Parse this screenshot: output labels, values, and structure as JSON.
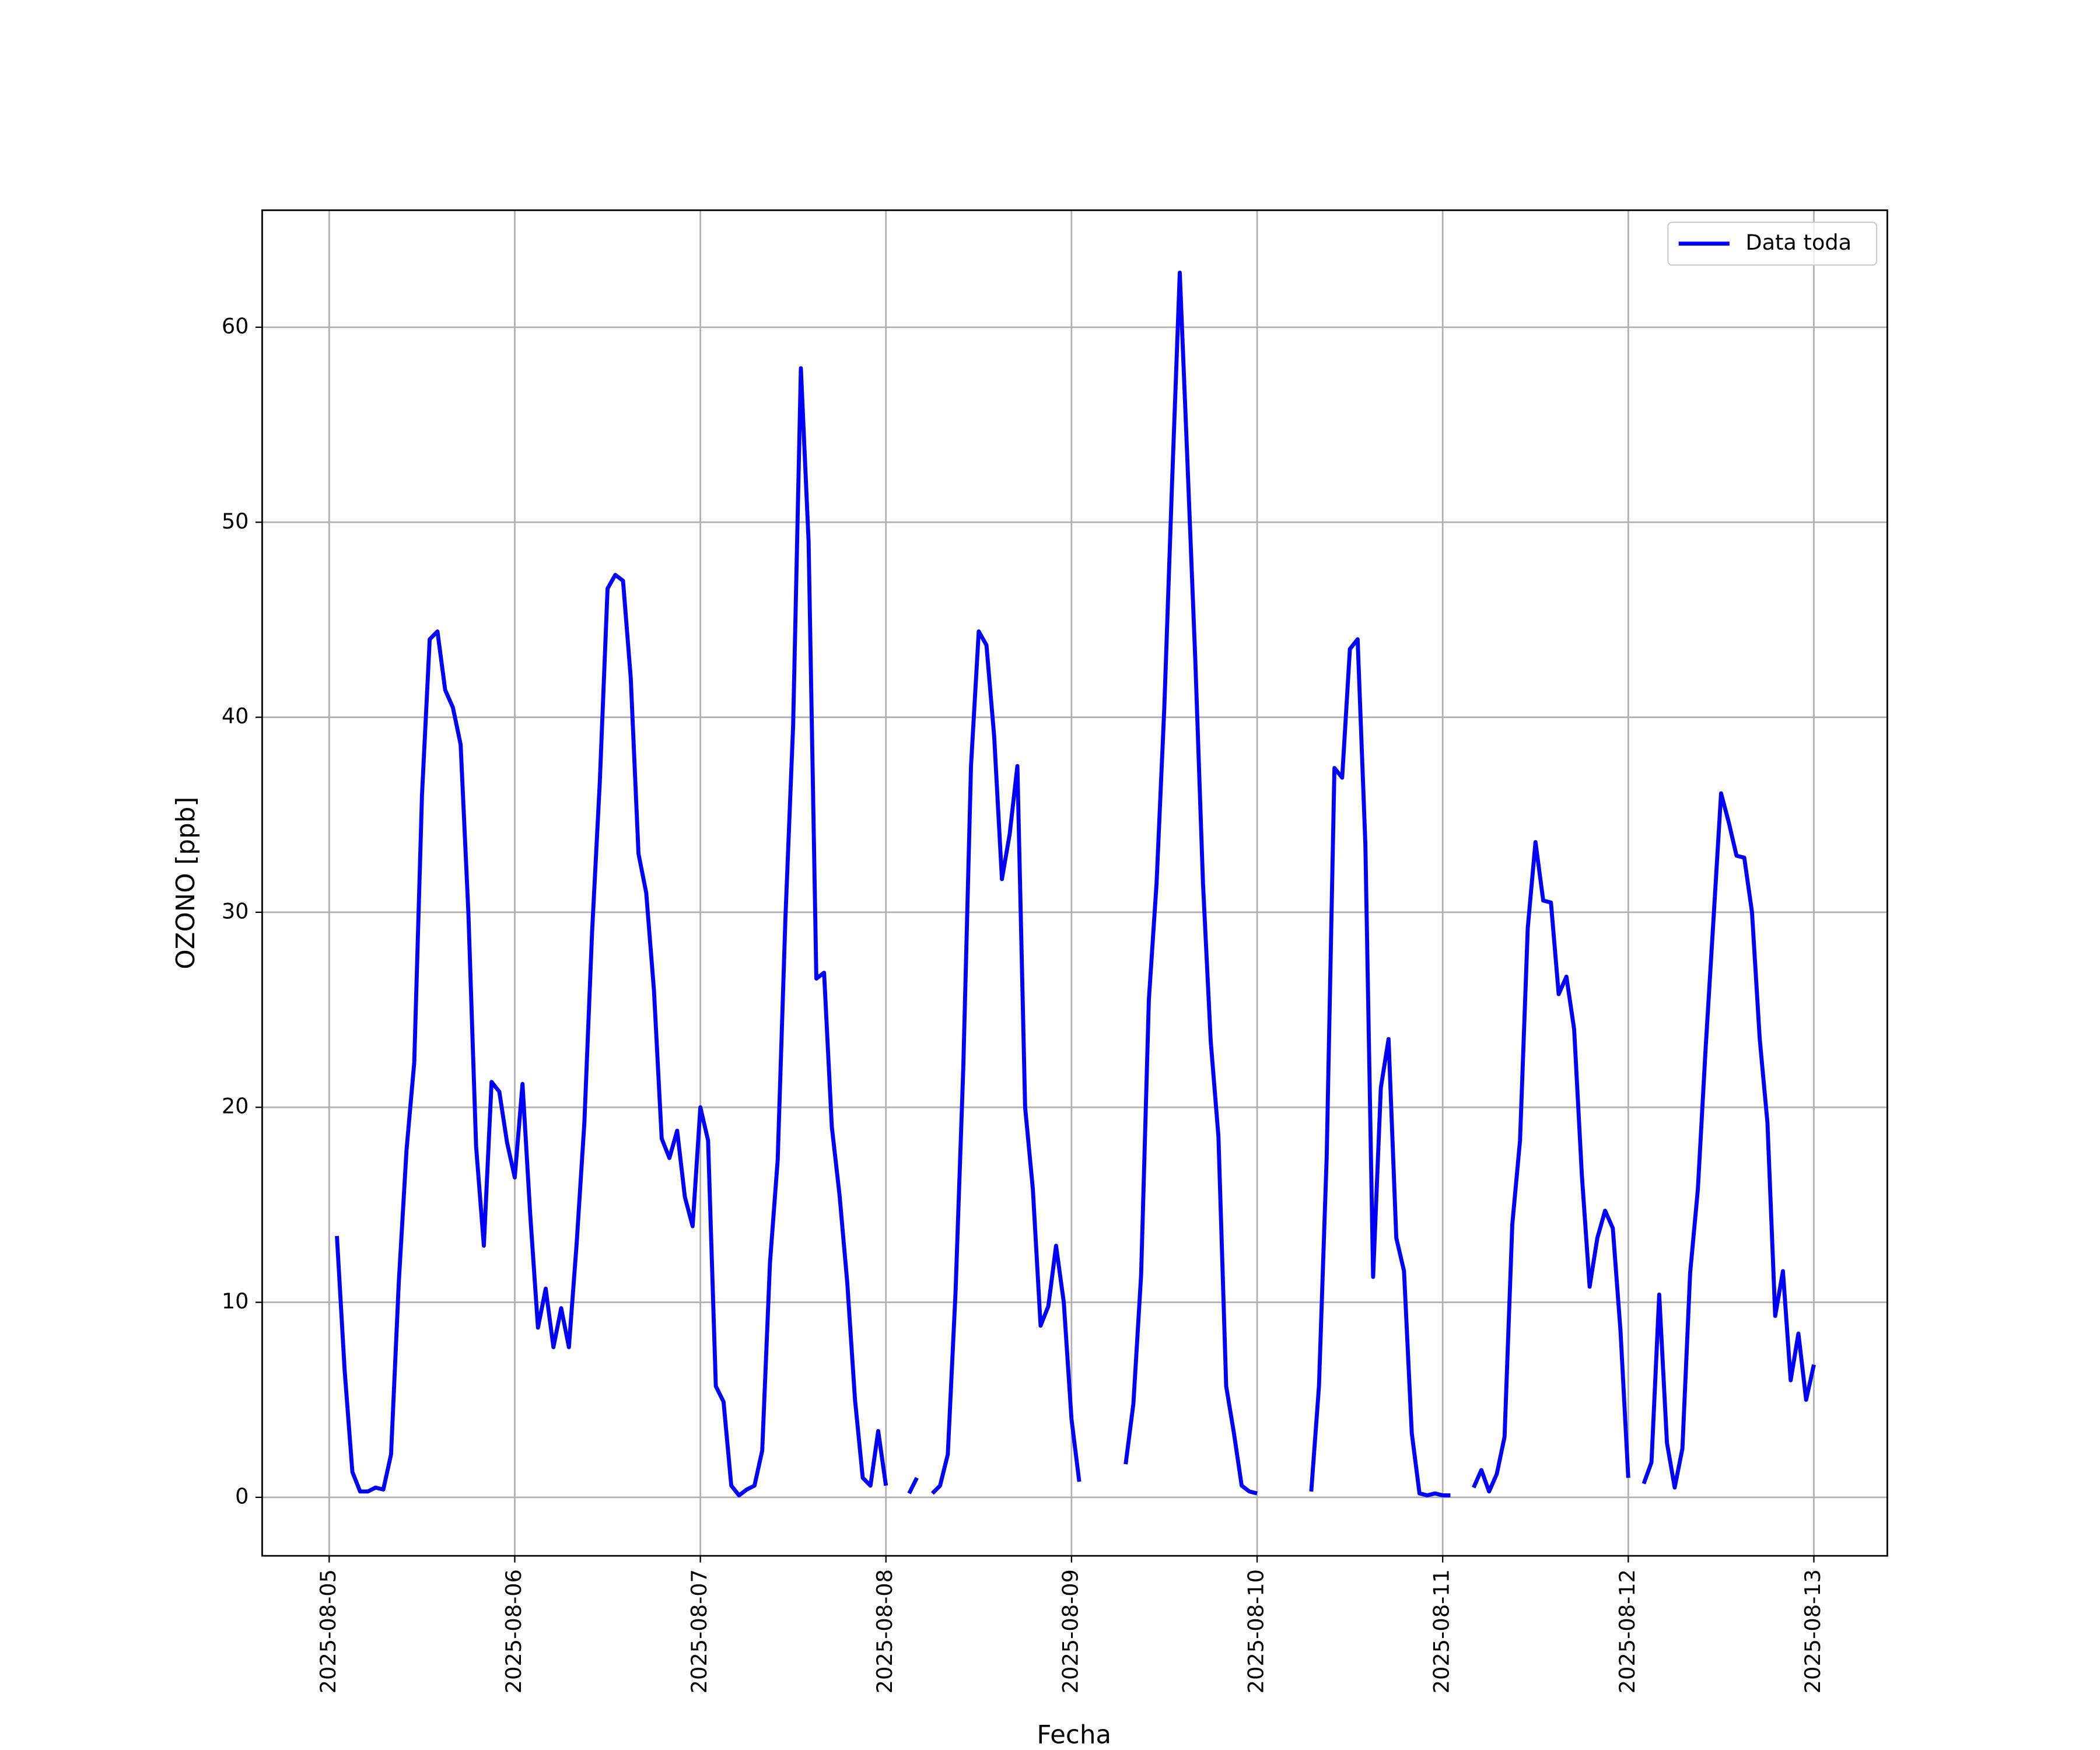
{
  "chart_data": {
    "type": "line",
    "xlabel": "Fecha",
    "ylabel": "OZONO [ppb]",
    "x": [
      "2025-08-05T01:00",
      "2025-08-05T02:00",
      "2025-08-05T03:00",
      "2025-08-05T04:00",
      "2025-08-05T05:00",
      "2025-08-05T06:00",
      "2025-08-05T07:00",
      "2025-08-05T08:00",
      "2025-08-05T09:00",
      "2025-08-05T10:00",
      "2025-08-05T11:00",
      "2025-08-05T12:00",
      "2025-08-05T13:00",
      "2025-08-05T14:00",
      "2025-08-05T15:00",
      "2025-08-05T16:00",
      "2025-08-05T17:00",
      "2025-08-05T18:00",
      "2025-08-05T19:00",
      "2025-08-05T20:00",
      "2025-08-05T21:00",
      "2025-08-05T22:00",
      "2025-08-05T23:00",
      "2025-08-06T00:00",
      "2025-08-06T01:00",
      "2025-08-06T02:00",
      "2025-08-06T03:00",
      "2025-08-06T04:00",
      "2025-08-06T05:00",
      "2025-08-06T06:00",
      "2025-08-06T07:00",
      "2025-08-06T08:00",
      "2025-08-06T09:00",
      "2025-08-06T10:00",
      "2025-08-06T11:00",
      "2025-08-06T12:00",
      "2025-08-06T13:00",
      "2025-08-06T14:00",
      "2025-08-06T15:00",
      "2025-08-06T16:00",
      "2025-08-06T17:00",
      "2025-08-06T18:00",
      "2025-08-06T19:00",
      "2025-08-06T20:00",
      "2025-08-06T21:00",
      "2025-08-06T22:00",
      "2025-08-06T23:00",
      "2025-08-07T00:00",
      "2025-08-07T01:00",
      "2025-08-07T02:00",
      "2025-08-07T03:00",
      "2025-08-07T04:00",
      "2025-08-07T05:00",
      "2025-08-07T06:00",
      "2025-08-07T07:00",
      "2025-08-07T08:00",
      "2025-08-07T09:00",
      "2025-08-07T10:00",
      "2025-08-07T11:00",
      "2025-08-07T12:00",
      "2025-08-07T13:00",
      "2025-08-07T14:00",
      "2025-08-07T15:00",
      "2025-08-07T16:00",
      "2025-08-07T17:00",
      "2025-08-07T18:00",
      "2025-08-07T19:00",
      "2025-08-07T20:00",
      "2025-08-07T21:00",
      "2025-08-07T22:00",
      "2025-08-07T23:00",
      "2025-08-08T00:00",
      "2025-08-08T01:00",
      "2025-08-08T02:00",
      "2025-08-08T03:00",
      "2025-08-08T04:00",
      "2025-08-08T05:00",
      "2025-08-08T06:00",
      "2025-08-08T07:00",
      "2025-08-08T08:00",
      "2025-08-08T09:00",
      "2025-08-08T10:00",
      "2025-08-08T11:00",
      "2025-08-08T12:00",
      "2025-08-08T13:00",
      "2025-08-08T14:00",
      "2025-08-08T15:00",
      "2025-08-08T16:00",
      "2025-08-08T17:00",
      "2025-08-08T18:00",
      "2025-08-08T19:00",
      "2025-08-08T20:00",
      "2025-08-08T21:00",
      "2025-08-08T22:00",
      "2025-08-08T23:00",
      "2025-08-09T00:00",
      "2025-08-09T01:00",
      "2025-08-09T02:00",
      "2025-08-09T03:00",
      "2025-08-09T04:00",
      "2025-08-09T05:00",
      "2025-08-09T06:00",
      "2025-08-09T07:00",
      "2025-08-09T08:00",
      "2025-08-09T09:00",
      "2025-08-09T10:00",
      "2025-08-09T11:00",
      "2025-08-09T12:00",
      "2025-08-09T13:00",
      "2025-08-09T14:00",
      "2025-08-09T15:00",
      "2025-08-09T16:00",
      "2025-08-09T17:00",
      "2025-08-09T18:00",
      "2025-08-09T19:00",
      "2025-08-09T20:00",
      "2025-08-09T21:00",
      "2025-08-09T22:00",
      "2025-08-09T23:00",
      "2025-08-10T00:00",
      "2025-08-10T01:00",
      "2025-08-10T02:00",
      "2025-08-10T03:00",
      "2025-08-10T04:00",
      "2025-08-10T05:00",
      "2025-08-10T06:00",
      "2025-08-10T07:00",
      "2025-08-10T08:00",
      "2025-08-10T09:00",
      "2025-08-10T10:00",
      "2025-08-10T11:00",
      "2025-08-10T12:00",
      "2025-08-10T13:00",
      "2025-08-10T14:00",
      "2025-08-10T15:00",
      "2025-08-10T16:00",
      "2025-08-10T17:00",
      "2025-08-10T18:00",
      "2025-08-10T19:00",
      "2025-08-10T20:00",
      "2025-08-10T21:00",
      "2025-08-10T22:00",
      "2025-08-10T23:00",
      "2025-08-11T00:00",
      "2025-08-11T01:00",
      "2025-08-11T02:00",
      "2025-08-11T03:00",
      "2025-08-11T04:00",
      "2025-08-11T05:00",
      "2025-08-11T06:00",
      "2025-08-11T07:00",
      "2025-08-11T08:00",
      "2025-08-11T09:00",
      "2025-08-11T10:00",
      "2025-08-11T11:00",
      "2025-08-11T12:00",
      "2025-08-11T13:00",
      "2025-08-11T14:00",
      "2025-08-11T15:00",
      "2025-08-11T16:00",
      "2025-08-11T17:00",
      "2025-08-11T18:00",
      "2025-08-11T19:00",
      "2025-08-11T20:00",
      "2025-08-11T21:00",
      "2025-08-11T22:00",
      "2025-08-11T23:00",
      "2025-08-12T00:00",
      "2025-08-12T01:00",
      "2025-08-12T02:00",
      "2025-08-12T03:00",
      "2025-08-12T04:00",
      "2025-08-12T05:00",
      "2025-08-12T06:00",
      "2025-08-12T07:00",
      "2025-08-12T08:00",
      "2025-08-12T09:00",
      "2025-08-12T10:00",
      "2025-08-12T11:00",
      "2025-08-12T12:00",
      "2025-08-12T13:00",
      "2025-08-12T14:00",
      "2025-08-12T15:00",
      "2025-08-12T16:00",
      "2025-08-12T17:00",
      "2025-08-12T18:00",
      "2025-08-12T19:00",
      "2025-08-12T20:00",
      "2025-08-12T21:00",
      "2025-08-12T22:00",
      "2025-08-12T23:00",
      "2025-08-13T00:00"
    ],
    "series": [
      {
        "name": "Data toda",
        "color": "#0000ff",
        "values": [
          13.4,
          6.5,
          1.3,
          0.3,
          0.3,
          0.5,
          0.4,
          2.2,
          11,
          17.8,
          22.3,
          36,
          44,
          44.4,
          41.4,
          40.5,
          38.6,
          30,
          18,
          12.9,
          21.3,
          20.8,
          18.2,
          16.4,
          21.2,
          14.5,
          8.7,
          10.7,
          7.7,
          9.7,
          7.7,
          13,
          19.2,
          29,
          36.7,
          46.6,
          47.3,
          47,
          42,
          33,
          31,
          26,
          18.4,
          17.4,
          18.8,
          15.4,
          13.9,
          20,
          18.3,
          5.7,
          4.9,
          0.6,
          0.1,
          0.4,
          0.6,
          2.4,
          12,
          17.3,
          29.7,
          39.6,
          57.9,
          49,
          26.6,
          26.9,
          19,
          15.5,
          11,
          5,
          1,
          0.6,
          3.4,
          0.6,
          null,
          null,
          0.2,
          1.0,
          null,
          0.2,
          0.6,
          2.2,
          10.5,
          22,
          37.5,
          44.4,
          43.7,
          39,
          31.7,
          34,
          37.5,
          20,
          15.8,
          8.8,
          9.8,
          12.9,
          10,
          4,
          0.8,
          null,
          null,
          null,
          null,
          null,
          1.7,
          4.8,
          11.4,
          25.5,
          31.5,
          40.5,
          52,
          62.8,
          53,
          43,
          31.5,
          23.4,
          18.5,
          5.7,
          3.3,
          0.6,
          0.3,
          0.2,
          null,
          null,
          null,
          null,
          null,
          null,
          0.3,
          5.7,
          17.5,
          37.4,
          36.9,
          43.5,
          44,
          33.5,
          11.3,
          21,
          23.5,
          13.3,
          11.6,
          3.3,
          0.2,
          0.1,
          0.2,
          0.1,
          0.1,
          null,
          null,
          0.5,
          1.4,
          0.3,
          1.2,
          3.1,
          14,
          18.3,
          29.2,
          33.6,
          30.6,
          30.5,
          25.8,
          26.7,
          24,
          16.5,
          10.8,
          13.3,
          14.7,
          13.8,
          8.5,
          1.0,
          null,
          0.7,
          1.8,
          10.4,
          2.8,
          0.5,
          2.5,
          11.5,
          15.8,
          23,
          29.5,
          36.1,
          34.6,
          32.9,
          32.8,
          30,
          23.5,
          19.2,
          9.3,
          11.6,
          6,
          8.4,
          5,
          6.8
        ]
      }
    ],
    "xlim": [
      "2025-08-04T15:20",
      "2025-08-13T09:30"
    ],
    "xticks": [
      "2025-08-05",
      "2025-08-06",
      "2025-08-07",
      "2025-08-08",
      "2025-08-09",
      "2025-08-10",
      "2025-08-11",
      "2025-08-12",
      "2025-08-13"
    ],
    "ylim": [
      -3,
      66
    ],
    "yticks": [
      0,
      10,
      20,
      30,
      40,
      50,
      60
    ],
    "grid": true,
    "legend": "upper right"
  }
}
